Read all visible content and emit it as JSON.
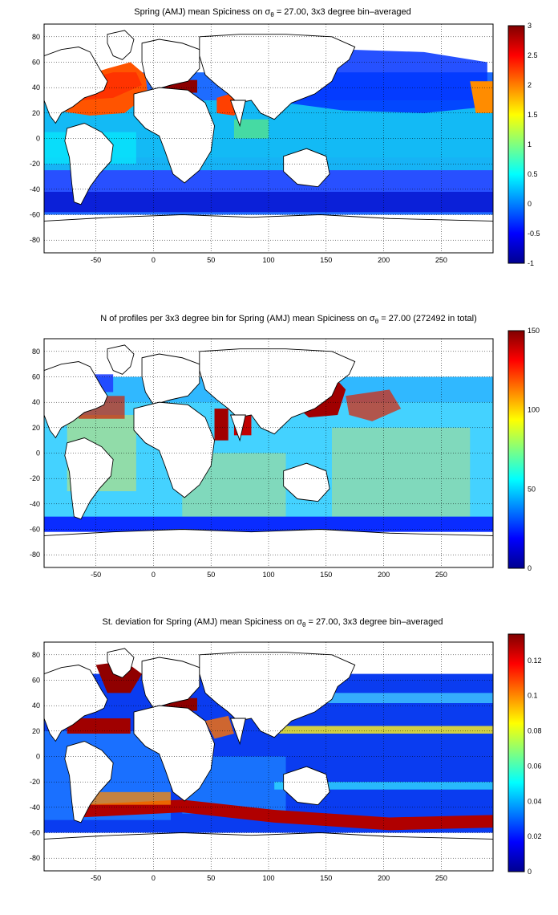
{
  "chart_data": [
    {
      "type": "heatmap",
      "title": "Spring (AMJ) mean Spiciness on σθ = 27.00, 3x3 degree bin–averaged",
      "title_parts": {
        "before": "Spring (AMJ) mean Spiciness on σ",
        "sub": "θ",
        "after": " = 27.00, 3x3 degree bin–averaged"
      },
      "xlabel": "",
      "ylabel": "",
      "xlim": [
        -95,
        295
      ],
      "ylim": [
        -90,
        90
      ],
      "x_ticks": [
        -50,
        0,
        50,
        100,
        150,
        200,
        250
      ],
      "y_ticks": [
        -80,
        -60,
        -40,
        -20,
        0,
        20,
        40,
        60,
        80
      ],
      "grid": "dotted",
      "colorbar": {
        "range": [
          -1,
          3
        ],
        "ticks": [
          -1,
          -0.5,
          0,
          0.5,
          1,
          1.5,
          2,
          2.5,
          3
        ],
        "tick_labels": [
          "-1",
          "-0.5",
          "0",
          "0.5",
          "1",
          "1.5",
          "2",
          "2.5",
          "3"
        ]
      },
      "colormap": "jet"
    },
    {
      "type": "heatmap",
      "title": "N of profiles per 3x3 degree bin for Spring (AMJ) mean Spiciness on σθ = 27.00 (272492 in total)",
      "title_parts": {
        "before": "N of profiles per 3x3 degree bin for Spring (AMJ) mean Spiciness on σ",
        "sub": "θ",
        "after": " = 27.00 (272492 in total)"
      },
      "total_profiles": 272492,
      "xlabel": "",
      "ylabel": "",
      "xlim": [
        -95,
        295
      ],
      "ylim": [
        -90,
        90
      ],
      "x_ticks": [
        -50,
        0,
        50,
        100,
        150,
        200,
        250
      ],
      "y_ticks": [
        -80,
        -60,
        -40,
        -20,
        0,
        20,
        40,
        60,
        80
      ],
      "grid": "dotted",
      "colorbar": {
        "range": [
          0,
          150
        ],
        "ticks": [
          0,
          50,
          100,
          150
        ],
        "tick_labels": [
          "0",
          "50",
          "100",
          "150"
        ]
      },
      "colormap": "jet"
    },
    {
      "type": "heatmap",
      "title": "St. deviation for Spring (AMJ) mean Spiciness on σθ = 27.00, 3x3 degree bin–averaged",
      "title_parts": {
        "before": "St. deviation for Spring (AMJ) mean Spiciness on σ",
        "sub": "θ",
        "after": " = 27.00, 3x3 degree bin–averaged"
      },
      "xlabel": "",
      "ylabel": "",
      "xlim": [
        -95,
        295
      ],
      "ylim": [
        -90,
        90
      ],
      "x_ticks": [
        -50,
        0,
        50,
        100,
        150,
        200,
        250
      ],
      "y_ticks": [
        -80,
        -60,
        -40,
        -20,
        0,
        20,
        40,
        60,
        80
      ],
      "grid": "dotted",
      "colorbar": {
        "range": [
          0,
          0.135
        ],
        "ticks": [
          0,
          0.02,
          0.04,
          0.06,
          0.08,
          0.1,
          0.12
        ],
        "tick_labels": [
          "0",
          "0.02",
          "0.04",
          "0.06",
          "0.08",
          "0.1",
          "0.12"
        ]
      },
      "colormap": "jet"
    }
  ]
}
